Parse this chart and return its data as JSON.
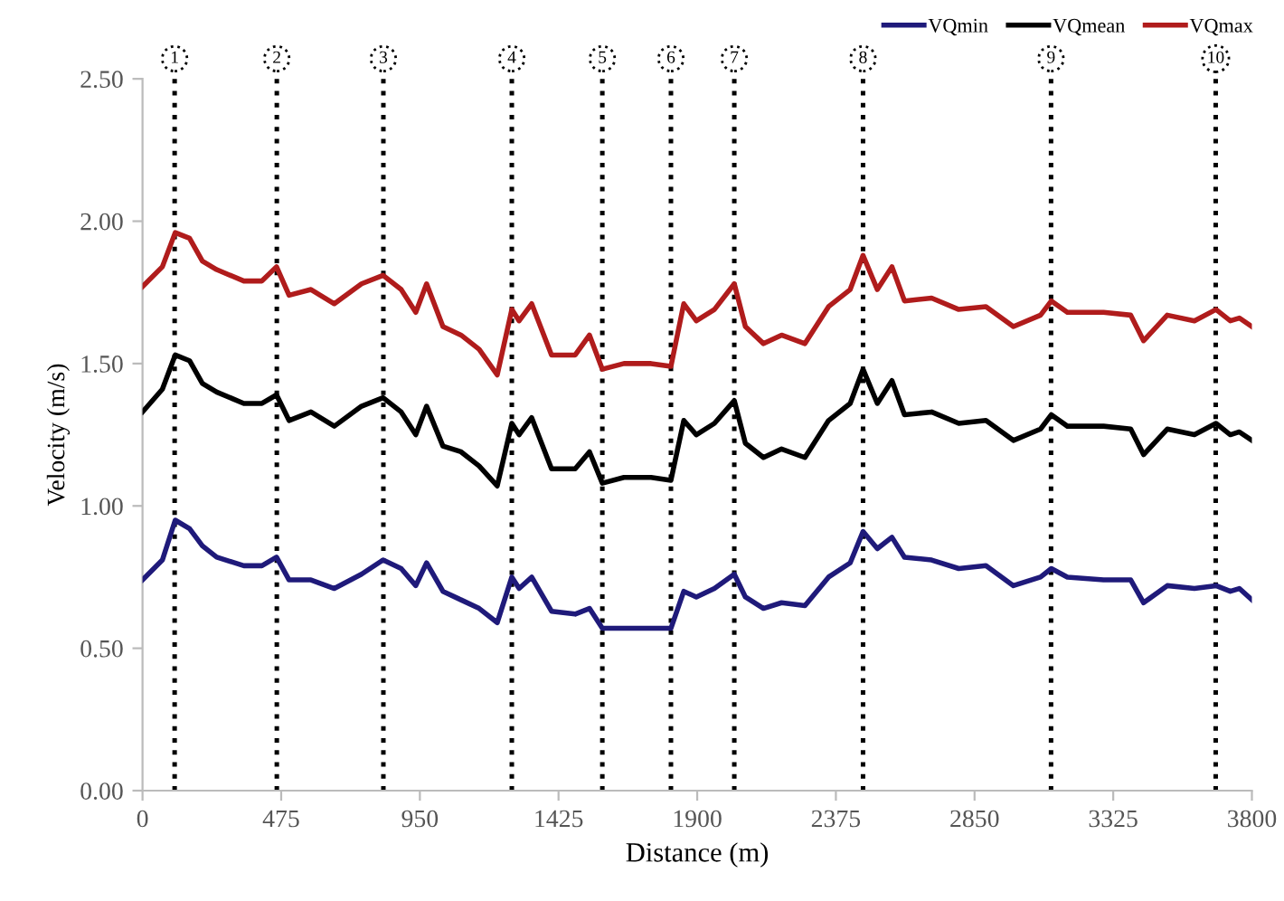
{
  "chart_data": {
    "type": "line",
    "xlabel": "Distance (m)",
    "ylabel": "Velocity (m/s)",
    "x": [
      0,
      68,
      112,
      161,
      205,
      254,
      347,
      409,
      459,
      502,
      577,
      657,
      750,
      824,
      886,
      936,
      973,
      1029,
      1091,
      1153,
      1215,
      1265,
      1290,
      1333,
      1401,
      1482,
      1531,
      1575,
      1649,
      1742,
      1810,
      1854,
      1897,
      1959,
      2027,
      2065,
      2127,
      2189,
      2269,
      2350,
      2424,
      2468,
      2517,
      2567,
      2610,
      2703,
      2796,
      2889,
      2983,
      3076,
      3113,
      3168,
      3292,
      3385,
      3429,
      3510,
      3603,
      3677,
      3726,
      3757,
      3800
    ],
    "series": [
      {
        "name": "VQmin",
        "color": "#1f1a7a",
        "values": [
          0.74,
          0.81,
          0.95,
          0.92,
          0.86,
          0.82,
          0.79,
          0.79,
          0.82,
          0.74,
          0.74,
          0.71,
          0.76,
          0.81,
          0.78,
          0.72,
          0.8,
          0.7,
          0.67,
          0.64,
          0.59,
          0.75,
          0.71,
          0.75,
          0.63,
          0.62,
          0.64,
          0.57,
          0.57,
          0.57,
          0.57,
          0.7,
          0.68,
          0.71,
          0.76,
          0.68,
          0.64,
          0.66,
          0.65,
          0.75,
          0.8,
          0.91,
          0.85,
          0.89,
          0.82,
          0.81,
          0.78,
          0.79,
          0.72,
          0.75,
          0.78,
          0.75,
          0.74,
          0.74,
          0.66,
          0.72,
          0.71,
          0.72,
          0.7,
          0.71,
          0.67
        ]
      },
      {
        "name": "VQmean",
        "color": "#000000",
        "values": [
          1.33,
          1.41,
          1.53,
          1.51,
          1.43,
          1.4,
          1.36,
          1.36,
          1.39,
          1.3,
          1.33,
          1.28,
          1.35,
          1.38,
          1.33,
          1.25,
          1.35,
          1.21,
          1.19,
          1.14,
          1.07,
          1.29,
          1.25,
          1.31,
          1.13,
          1.13,
          1.19,
          1.08,
          1.1,
          1.1,
          1.09,
          1.3,
          1.25,
          1.29,
          1.37,
          1.22,
          1.17,
          1.2,
          1.17,
          1.3,
          1.36,
          1.48,
          1.36,
          1.44,
          1.32,
          1.33,
          1.29,
          1.3,
          1.23,
          1.27,
          1.32,
          1.28,
          1.28,
          1.27,
          1.18,
          1.27,
          1.25,
          1.29,
          1.25,
          1.26,
          1.23
        ]
      },
      {
        "name": "VQmax",
        "color": "#b01c1c",
        "values": [
          1.77,
          1.84,
          1.96,
          1.94,
          1.86,
          1.83,
          1.79,
          1.79,
          1.84,
          1.74,
          1.76,
          1.71,
          1.78,
          1.81,
          1.76,
          1.68,
          1.78,
          1.63,
          1.6,
          1.55,
          1.46,
          1.69,
          1.65,
          1.71,
          1.53,
          1.53,
          1.6,
          1.48,
          1.5,
          1.5,
          1.49,
          1.71,
          1.65,
          1.69,
          1.78,
          1.63,
          1.57,
          1.6,
          1.57,
          1.7,
          1.76,
          1.88,
          1.76,
          1.84,
          1.72,
          1.73,
          1.69,
          1.7,
          1.63,
          1.67,
          1.72,
          1.68,
          1.68,
          1.67,
          1.58,
          1.67,
          1.65,
          1.69,
          1.65,
          1.66,
          1.63
        ]
      }
    ],
    "ref_lines": [
      {
        "axis": "x",
        "value": 110,
        "color": "#000000",
        "line_style": "dotted"
      },
      {
        "axis": "x",
        "value": 460,
        "color": "#000000",
        "line_style": "dotted"
      },
      {
        "axis": "x",
        "value": 825,
        "color": "#000000",
        "line_style": "dotted"
      },
      {
        "axis": "x",
        "value": 1265,
        "color": "#000000",
        "line_style": "dotted"
      },
      {
        "axis": "x",
        "value": 1575,
        "color": "#000000",
        "line_style": "dotted"
      },
      {
        "axis": "x",
        "value": 1810,
        "color": "#000000",
        "line_style": "dotted"
      },
      {
        "axis": "x",
        "value": 2027,
        "color": "#000000",
        "line_style": "dotted"
      },
      {
        "axis": "x",
        "value": 2468,
        "color": "#000000",
        "line_style": "dotted"
      },
      {
        "axis": "x",
        "value": 3112,
        "color": "#000000",
        "line_style": "dotted"
      },
      {
        "axis": "x",
        "value": 3676,
        "color": "#000000",
        "line_style": "dotted"
      }
    ],
    "annotations": [
      {
        "text": "1",
        "x": 110,
        "y": 2.5
      },
      {
        "text": "2",
        "x": 460,
        "y": 2.5
      },
      {
        "text": "3",
        "x": 825,
        "y": 2.5
      },
      {
        "text": "4",
        "x": 1265,
        "y": 2.5
      },
      {
        "text": "5",
        "x": 1575,
        "y": 2.5
      },
      {
        "text": "6",
        "x": 1810,
        "y": 2.5
      },
      {
        "text": "7",
        "x": 2027,
        "y": 2.5
      },
      {
        "text": "8",
        "x": 2468,
        "y": 2.5
      },
      {
        "text": "9",
        "x": 3112,
        "y": 2.5
      },
      {
        "text": "10",
        "x": 3676,
        "y": 2.5
      }
    ],
    "xlim": [
      0,
      3800
    ],
    "xticks": [
      0,
      475,
      950,
      1425,
      1900,
      2375,
      2850,
      3325,
      3800
    ],
    "ylim": [
      0,
      2.5
    ],
    "yticks": [
      {
        "value": 0,
        "label": "0.00"
      },
      {
        "value": 0.5,
        "label": "0.50"
      },
      {
        "value": 1,
        "label": "1.00"
      },
      {
        "value": 1.5,
        "label": "1.50"
      },
      {
        "value": 2,
        "label": "2.00"
      },
      {
        "value": 2.5,
        "label": "2.50"
      }
    ],
    "grid": false,
    "legend": "top right",
    "marker": "none",
    "line_style": "solid"
  }
}
